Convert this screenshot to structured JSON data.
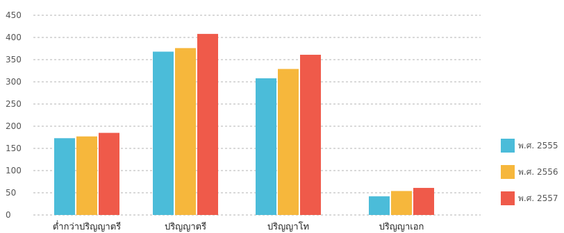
{
  "chart_data": {
    "type": "bar",
    "categories": [
      "ต่ำกว่าปริญญาตรี",
      "ปริญญาตรี",
      "ปริญญาโท",
      "ปริญญาเอก"
    ],
    "series": [
      {
        "name": "พ.ศ. 2555",
        "color": "#4bbcd9",
        "values": [
          173,
          368,
          308,
          42
        ]
      },
      {
        "name": "พ.ศ. 2556",
        "color": "#f6b73c",
        "values": [
          177,
          376,
          329,
          54
        ]
      },
      {
        "name": "พ.ศ. 2557",
        "color": "#ef5a4a",
        "values": [
          185,
          408,
          361,
          61
        ]
      }
    ],
    "yticks": [
      0,
      50,
      100,
      150,
      200,
      250,
      300,
      350,
      400,
      450
    ],
    "ylim": [
      0,
      450
    ],
    "grid": true,
    "legend_position": "right",
    "title": "",
    "xlabel": "",
    "ylabel": ""
  }
}
